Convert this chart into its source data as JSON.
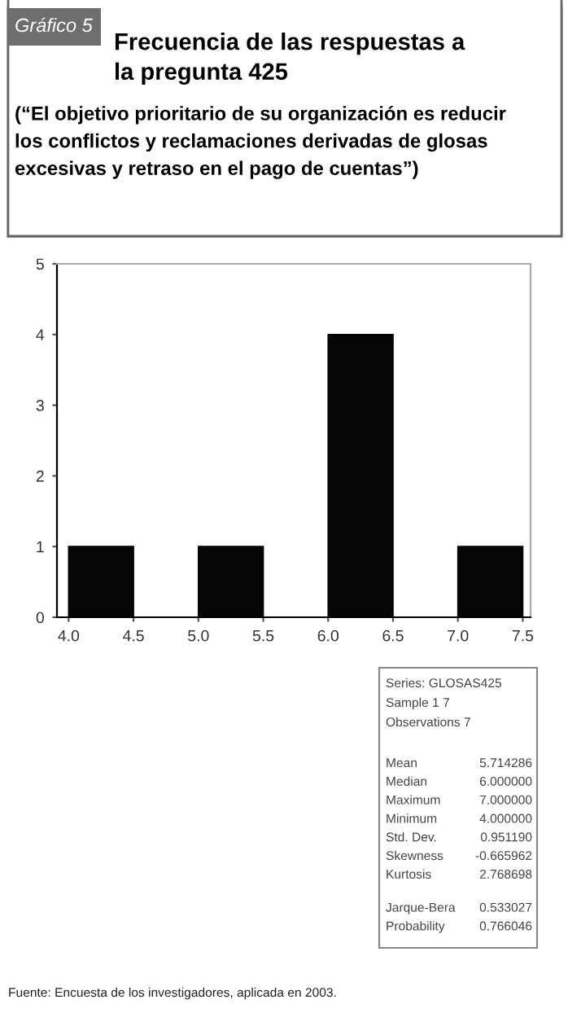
{
  "chart_data": {
    "type": "histogram",
    "title": "Frecuencia de las respuestas a\nla pregunta 425",
    "subtitle": "(“El objetivo prioritario de su organización es reducir\nlos conflictos y reclamaciones derivadas de glosas\nexcesivas y retraso en el pago de cuentas”)",
    "bins": [
      4.0,
      4.5,
      5.0,
      5.5,
      6.0,
      6.5,
      7.0,
      7.5
    ],
    "values": [
      1,
      0,
      1,
      0,
      4,
      0,
      1
    ],
    "color": "#050505",
    "xlim": [
      3.91,
      7.56
    ],
    "xticks": [
      {
        "value": 4.0,
        "label": "4.0"
      },
      {
        "value": 4.5,
        "label": "4.5"
      },
      {
        "value": 5.0,
        "label": "5.0"
      },
      {
        "value": 5.5,
        "label": "5.5"
      },
      {
        "value": 6.0,
        "label": "6.0"
      },
      {
        "value": 6.5,
        "label": "6.5"
      },
      {
        "value": 7.0,
        "label": "7.0"
      },
      {
        "value": 7.5,
        "label": "7.5"
      }
    ],
    "ylim": [
      0,
      5
    ],
    "yticks": [
      0,
      1,
      2,
      3,
      4,
      5
    ],
    "grid": false,
    "annotations": [
      "Gráfico 5",
      "Series: GLOSAS425",
      "Sample 1 7",
      "Observations 7",
      "Mean",
      "5.714286",
      "Median",
      "6.000000",
      "Maximum",
      "7.000000",
      "Minimum",
      "4.000000",
      "Std. Dev.",
      "0.951190",
      "Skewness",
      "-0.665962",
      "Kurtosis",
      "2.768698",
      "Jarque-Bera",
      "0.533027",
      "Probability",
      "0.766046",
      "Fuente: Encuesta de los investigadores, aplicada en 2003."
    ]
  }
}
